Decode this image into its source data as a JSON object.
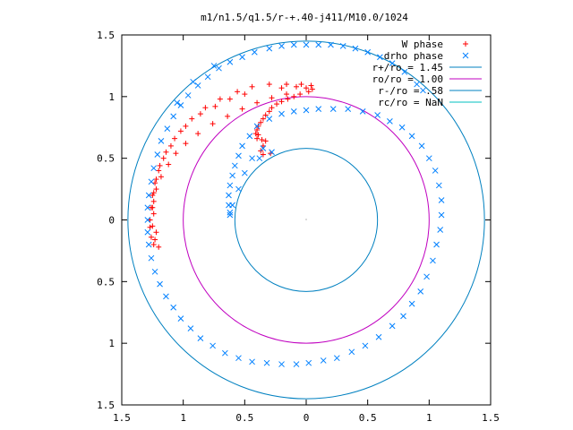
{
  "chart_data": {
    "type": "scatter",
    "title": "m1/n1.5/q1.5/r-+.40-j411/M10.0/1024",
    "xlim": [
      -1.5,
      1.5
    ],
    "ylim": [
      -1.5,
      1.5
    ],
    "x_ticks": [
      {
        "value": -1.5,
        "label": "1.5"
      },
      {
        "value": -1.0,
        "label": "1"
      },
      {
        "value": -0.5,
        "label": "0.5"
      },
      {
        "value": 0.0,
        "label": "0"
      },
      {
        "value": 0.5,
        "label": "0.5"
      },
      {
        "value": 1.0,
        "label": "1"
      },
      {
        "value": 1.5,
        "label": "1.5"
      }
    ],
    "y_ticks": [
      {
        "value": 1.5,
        "label": "1.5"
      },
      {
        "value": 1.0,
        "label": "1"
      },
      {
        "value": 0.5,
        "label": "0.5"
      },
      {
        "value": 0.0,
        "label": "0"
      },
      {
        "value": -0.5,
        "label": "0.5"
      },
      {
        "value": -1.0,
        "label": "1"
      },
      {
        "value": -1.5,
        "label": "1.5"
      }
    ],
    "grid": false,
    "legend_position": "top-right",
    "series": [
      {
        "name": "W phase",
        "marker": "plus",
        "color": "#ff0000",
        "points": [
          [
            -1.2,
            -0.22
          ],
          [
            -1.24,
            -0.2
          ],
          [
            -1.26,
            -0.14
          ],
          [
            -1.27,
            -0.06
          ],
          [
            -1.27,
            0.0
          ],
          [
            -1.26,
            0.1
          ],
          [
            -1.25,
            0.2
          ],
          [
            -1.23,
            0.3
          ],
          [
            -1.2,
            0.4
          ],
          [
            -1.16,
            0.5
          ],
          [
            -1.1,
            0.6
          ],
          [
            -1.02,
            0.72
          ],
          [
            -0.93,
            0.82
          ],
          [
            -0.82,
            0.91
          ],
          [
            -0.7,
            0.98
          ],
          [
            -0.56,
            1.04
          ],
          [
            -0.44,
            1.08
          ],
          [
            -0.3,
            1.1
          ],
          [
            -0.16,
            1.1
          ],
          [
            -0.04,
            1.1
          ],
          [
            0.04,
            1.09
          ],
          [
            0.05,
            1.06
          ],
          [
            0.02,
            1.04
          ],
          [
            -0.05,
            1.02
          ],
          [
            -0.15,
            0.98
          ],
          [
            -0.24,
            0.94
          ],
          [
            -0.3,
            0.88
          ],
          [
            -0.35,
            0.82
          ],
          [
            -0.39,
            0.76
          ],
          [
            -0.41,
            0.7
          ],
          [
            -0.4,
            0.66
          ],
          [
            -0.36,
            0.65
          ],
          [
            -0.33,
            0.64
          ],
          [
            -0.35,
            0.6
          ],
          [
            -0.37,
            0.56
          ],
          [
            -0.35,
            0.53
          ],
          [
            -0.29,
            0.54
          ],
          [
            -1.22,
            -0.1
          ],
          [
            -1.24,
            0.05
          ],
          [
            -1.24,
            0.15
          ],
          [
            -1.22,
            0.25
          ],
          [
            -1.18,
            0.35
          ],
          [
            -1.12,
            0.45
          ],
          [
            -1.06,
            0.54
          ],
          [
            -0.98,
            0.62
          ],
          [
            -0.88,
            0.7
          ],
          [
            -0.76,
            0.78
          ],
          [
            -0.64,
            0.84
          ],
          [
            -0.52,
            0.9
          ],
          [
            -0.4,
            0.95
          ],
          [
            -0.28,
            0.99
          ],
          [
            -0.16,
            1.02
          ],
          [
            -0.5,
            1.02
          ],
          [
            -0.62,
            0.98
          ],
          [
            -0.74,
            0.92
          ],
          [
            -0.86,
            0.86
          ],
          [
            -0.98,
            0.76
          ],
          [
            -1.07,
            0.66
          ],
          [
            -1.14,
            0.55
          ],
          [
            -1.19,
            0.44
          ],
          [
            -1.22,
            0.33
          ],
          [
            -1.24,
            0.22
          ],
          [
            -1.25,
            0.1
          ],
          [
            -1.25,
            -0.05
          ],
          [
            -1.23,
            -0.16
          ],
          [
            -0.2,
            1.07
          ],
          [
            -0.08,
            1.08
          ],
          [
            0.0,
            1.07
          ],
          [
            -0.1,
            1.0
          ],
          [
            -0.2,
            0.96
          ],
          [
            -0.28,
            0.91
          ],
          [
            -0.33,
            0.85
          ],
          [
            -0.37,
            0.79
          ],
          [
            -0.4,
            0.73
          ],
          [
            -0.39,
            0.69
          ]
        ]
      },
      {
        "name": "drho phase",
        "marker": "cross",
        "color": "#0080ff",
        "points": [
          [
            0.95,
            1.05
          ],
          [
            0.8,
            1.2
          ],
          [
            0.6,
            1.32
          ],
          [
            0.4,
            1.39
          ],
          [
            0.2,
            1.42
          ],
          [
            0.0,
            1.42
          ],
          [
            -0.2,
            1.41
          ],
          [
            -0.42,
            1.36
          ],
          [
            -0.62,
            1.28
          ],
          [
            -0.8,
            1.16
          ],
          [
            -0.96,
            1.01
          ],
          [
            -1.08,
            0.84
          ],
          [
            -1.18,
            0.64
          ],
          [
            -1.24,
            0.42
          ],
          [
            -1.28,
            0.2
          ],
          [
            -1.29,
            0.0
          ],
          [
            -1.28,
            -0.2
          ],
          [
            -1.23,
            -0.42
          ],
          [
            -1.14,
            -0.62
          ],
          [
            -1.02,
            -0.8
          ],
          [
            -0.86,
            -0.96
          ],
          [
            -0.66,
            -1.08
          ],
          [
            -0.44,
            -1.15
          ],
          [
            -0.2,
            -1.17
          ],
          [
            0.02,
            -1.16
          ],
          [
            0.25,
            -1.12
          ],
          [
            0.48,
            -1.02
          ],
          [
            0.7,
            -0.86
          ],
          [
            0.86,
            -0.68
          ],
          [
            0.98,
            -0.46
          ],
          [
            1.06,
            -0.2
          ],
          [
            1.1,
            0.04
          ],
          [
            1.08,
            0.28
          ],
          [
            1.0,
            0.5
          ],
          [
            0.86,
            0.68
          ],
          [
            0.68,
            0.8
          ],
          [
            0.46,
            0.88
          ],
          [
            0.22,
            0.9
          ],
          [
            0.0,
            0.89
          ],
          [
            -0.2,
            0.86
          ],
          [
            -0.4,
            0.76
          ],
          [
            -0.52,
            0.6
          ],
          [
            -0.58,
            0.44
          ],
          [
            -0.62,
            0.28
          ],
          [
            -0.63,
            0.12
          ],
          [
            -0.62,
            0.04
          ],
          [
            -0.6,
            0.12
          ],
          [
            -0.55,
            0.25
          ],
          [
            -0.5,
            0.38
          ],
          [
            -0.44,
            0.5
          ],
          [
            -0.35,
            0.58
          ],
          [
            -0.28,
            0.55
          ],
          [
            -0.38,
            0.5
          ],
          [
            0.9,
            1.1
          ],
          [
            0.7,
            1.27
          ],
          [
            0.5,
            1.36
          ],
          [
            0.3,
            1.41
          ],
          [
            0.1,
            1.42
          ],
          [
            -0.1,
            1.42
          ],
          [
            -0.3,
            1.39
          ],
          [
            -0.52,
            1.32
          ],
          [
            -0.71,
            1.23
          ],
          [
            -0.88,
            1.09
          ],
          [
            -1.02,
            0.93
          ],
          [
            -1.13,
            0.74
          ],
          [
            -1.21,
            0.53
          ],
          [
            -1.26,
            0.31
          ],
          [
            -1.29,
            0.1
          ],
          [
            -1.29,
            -0.1
          ],
          [
            -1.26,
            -0.31
          ],
          [
            -1.19,
            -0.52
          ],
          [
            -1.08,
            -0.71
          ],
          [
            -0.94,
            -0.88
          ],
          [
            -0.76,
            -1.02
          ],
          [
            -0.55,
            -1.12
          ],
          [
            -0.32,
            -1.16
          ],
          [
            -0.08,
            -1.17
          ],
          [
            0.14,
            -1.14
          ],
          [
            0.37,
            -1.07
          ],
          [
            0.59,
            -0.95
          ],
          [
            0.79,
            -0.78
          ],
          [
            0.93,
            -0.58
          ],
          [
            1.03,
            -0.33
          ],
          [
            1.09,
            -0.08
          ],
          [
            1.1,
            0.16
          ],
          [
            1.05,
            0.4
          ],
          [
            0.94,
            0.6
          ],
          [
            0.78,
            0.75
          ],
          [
            0.58,
            0.85
          ],
          [
            0.34,
            0.9
          ],
          [
            0.1,
            0.9
          ],
          [
            -0.1,
            0.88
          ],
          [
            -0.3,
            0.82
          ],
          [
            -0.46,
            0.68
          ],
          [
            -0.55,
            0.52
          ],
          [
            -0.6,
            0.36
          ],
          [
            -0.63,
            0.2
          ],
          [
            -0.62,
            0.06
          ],
          [
            -1.05,
            0.95
          ],
          [
            -0.92,
            1.12
          ],
          [
            -0.75,
            1.25
          ]
        ]
      },
      {
        "name": "r+/ro = 1.45",
        "type": "circle",
        "radius": 1.45,
        "color": "#0080c0"
      },
      {
        "name": "ro/ro = 1.00",
        "type": "circle",
        "radius": 1.0,
        "color": "#c000c0"
      },
      {
        "name": "r-/ro = .58",
        "type": "circle",
        "radius": 0.58,
        "color": "#0080c0"
      },
      {
        "name": "rc/ro = NaN",
        "type": "circle",
        "radius": null,
        "color": "#00c0c0"
      }
    ]
  }
}
